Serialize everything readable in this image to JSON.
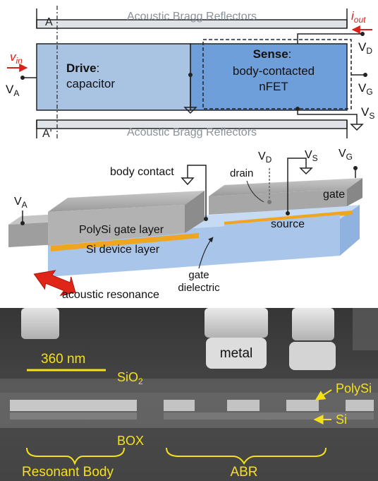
{
  "top_schematic": {
    "abr_top_label": "Acoustic Bragg Reflectors",
    "abr_bottom_label": "Acoustic Bragg Reflectors",
    "section_top": "A",
    "section_bottom": "A'",
    "v_in": "v",
    "v_in_sub": "in",
    "i_out": "i",
    "i_out_sub": "out",
    "drive_title": "Drive",
    "drive_desc": "capacitor",
    "sense_title": "Sense",
    "sense_desc_1": "body-contacted",
    "sense_desc_2": "nFET",
    "terminals": {
      "va": {
        "main": "V",
        "sub": "A"
      },
      "vd": {
        "main": "V",
        "sub": "D"
      },
      "vg": {
        "main": "V",
        "sub": "G"
      },
      "vs": {
        "main": "V",
        "sub": "S"
      }
    }
  },
  "device_3d": {
    "body_contact": "body contact",
    "drain": "drain",
    "gate": "gate",
    "source": "source",
    "polysi_layer": "PolySi gate layer",
    "si_layer": "Si device layer",
    "gate_dielectric_1": "gate",
    "gate_dielectric_2": "dielectric",
    "acoustic_resonance": "acoustic resonance",
    "terminals": {
      "va": {
        "main": "V",
        "sub": "A"
      },
      "vd": {
        "main": "V",
        "sub": "D"
      },
      "vs": {
        "main": "V",
        "sub": "S"
      },
      "vg": {
        "main": "V",
        "sub": "G"
      }
    }
  },
  "micrograph": {
    "scale_bar": "360 nm",
    "sio2": "SiO",
    "sio2_sub": "2",
    "metal": "metal",
    "polysi": "PolySi",
    "si": "Si",
    "box": "BOX",
    "resonant_body": "Resonant Body",
    "abr": "ABR"
  },
  "colors": {
    "drive_fill": "#a9c3e3",
    "sense_fill": "#6f9fda",
    "accent_red": "#d9201a",
    "annotation_yellow": "#f5e11a",
    "gate_gray": "#a8a8a8",
    "si_blue": "#a9c6ea",
    "dielectric_orange": "#f0a51e"
  }
}
